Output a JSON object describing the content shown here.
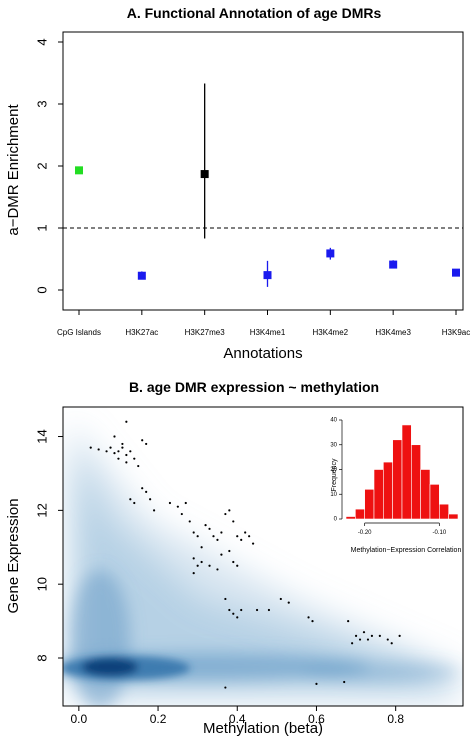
{
  "chart_data": [
    {
      "type": "scatter",
      "title": "A. Functional Annotation of age DMRs",
      "xlabel": "Annotations",
      "ylabel": "a−DMR Enrichment",
      "ylim": [
        0,
        4
      ],
      "yticks": [
        "0",
        "1",
        "2",
        "3",
        "4"
      ],
      "reference_line": {
        "y": 1,
        "style": "dashed"
      },
      "categories": [
        "CpG Islands",
        "H3K27ac",
        "H3K27me3",
        "H3K4me1",
        "H3K4me2",
        "H3K4me3",
        "H3K9ac"
      ],
      "values": [
        1.93,
        0.23,
        1.87,
        0.24,
        0.59,
        0.41,
        0.28
      ],
      "ci_low": [
        1.88,
        0.17,
        0.83,
        0.05,
        0.49,
        0.35,
        0.22
      ],
      "ci_high": [
        1.98,
        0.3,
        3.33,
        0.47,
        0.68,
        0.48,
        0.33
      ],
      "point_colors": [
        "#22dd22",
        "#1a1aee",
        "#000000",
        "#1a1aee",
        "#1a1aee",
        "#1a1aee",
        "#1a1aee"
      ],
      "grid": false
    },
    {
      "type": "scatter",
      "title": "B. age DMR expression ~ methylation",
      "xlabel": "Methylation (beta)",
      "ylabel": "Gene Expression",
      "xlim": [
        -0.04,
        0.97
      ],
      "ylim": [
        6.7,
        14.8
      ],
      "xticks": [
        "0.0",
        "0.2",
        "0.4",
        "0.6",
        "0.8"
      ],
      "yticks": [
        "8",
        "10",
        "12",
        "14"
      ],
      "background": "smoothed density (blue), peak near methylation 0.07, expression 7.7",
      "points": [
        [
          0.12,
          14.4
        ],
        [
          0.09,
          14.0
        ],
        [
          0.16,
          13.9
        ],
        [
          0.03,
          13.7
        ],
        [
          0.05,
          13.65
        ],
        [
          0.07,
          13.6
        ],
        [
          0.08,
          13.7
        ],
        [
          0.09,
          13.55
        ],
        [
          0.1,
          13.6
        ],
        [
          0.11,
          13.7
        ],
        [
          0.12,
          13.5
        ],
        [
          0.13,
          13.6
        ],
        [
          0.1,
          13.4
        ],
        [
          0.12,
          13.3
        ],
        [
          0.14,
          13.4
        ],
        [
          0.15,
          13.2
        ],
        [
          0.17,
          13.8
        ],
        [
          0.11,
          13.8
        ],
        [
          0.13,
          12.3
        ],
        [
          0.14,
          12.2
        ],
        [
          0.16,
          12.6
        ],
        [
          0.17,
          12.5
        ],
        [
          0.18,
          12.3
        ],
        [
          0.19,
          12.0
        ],
        [
          0.23,
          12.2
        ],
        [
          0.25,
          12.1
        ],
        [
          0.27,
          12.2
        ],
        [
          0.26,
          11.9
        ],
        [
          0.28,
          11.7
        ],
        [
          0.29,
          11.4
        ],
        [
          0.3,
          11.3
        ],
        [
          0.32,
          11.6
        ],
        [
          0.33,
          11.5
        ],
        [
          0.34,
          11.3
        ],
        [
          0.35,
          11.2
        ],
        [
          0.36,
          11.4
        ],
        [
          0.37,
          11.9
        ],
        [
          0.38,
          12.0
        ],
        [
          0.39,
          11.7
        ],
        [
          0.4,
          11.3
        ],
        [
          0.41,
          11.2
        ],
        [
          0.42,
          11.4
        ],
        [
          0.43,
          11.3
        ],
        [
          0.44,
          11.1
        ],
        [
          0.31,
          11.0
        ],
        [
          0.29,
          10.7
        ],
        [
          0.3,
          10.5
        ],
        [
          0.29,
          10.3
        ],
        [
          0.31,
          10.6
        ],
        [
          0.33,
          10.5
        ],
        [
          0.35,
          10.4
        ],
        [
          0.36,
          10.8
        ],
        [
          0.38,
          10.9
        ],
        [
          0.4,
          10.5
        ],
        [
          0.39,
          10.6
        ],
        [
          0.37,
          9.6
        ],
        [
          0.38,
          9.3
        ],
        [
          0.39,
          9.2
        ],
        [
          0.4,
          9.1
        ],
        [
          0.41,
          9.3
        ],
        [
          0.45,
          9.3
        ],
        [
          0.48,
          9.3
        ],
        [
          0.51,
          9.6
        ],
        [
          0.53,
          9.5
        ],
        [
          0.58,
          9.1
        ],
        [
          0.59,
          9.0
        ],
        [
          0.68,
          9.0
        ],
        [
          0.7,
          8.6
        ],
        [
          0.72,
          8.7
        ],
        [
          0.69,
          8.4
        ],
        [
          0.71,
          8.5
        ],
        [
          0.73,
          8.5
        ],
        [
          0.74,
          8.6
        ],
        [
          0.76,
          8.6
        ],
        [
          0.78,
          8.5
        ],
        [
          0.79,
          8.4
        ],
        [
          0.81,
          8.6
        ],
        [
          0.37,
          7.2
        ],
        [
          0.6,
          7.3
        ],
        [
          0.67,
          7.35
        ]
      ],
      "inset": {
        "type": "bar",
        "xlabel": "Methylation−Expression Correlation",
        "ylabel": "Frequency",
        "xticks": [
          "-0.20",
          "-0.10"
        ],
        "yticks": [
          "0",
          "10",
          "20",
          "30",
          "40"
        ],
        "ylim": [
          0,
          40
        ],
        "bin_edges": [
          -0.225,
          -0.2125,
          -0.2,
          -0.1875,
          -0.175,
          -0.1625,
          -0.15,
          -0.1375,
          -0.125,
          -0.1125,
          -0.1,
          -0.0875,
          -0.075
        ],
        "frequencies": [
          1,
          4,
          12,
          20,
          23,
          32,
          38,
          30,
          20,
          14,
          6,
          2
        ],
        "color": "#ee1111"
      }
    }
  ]
}
